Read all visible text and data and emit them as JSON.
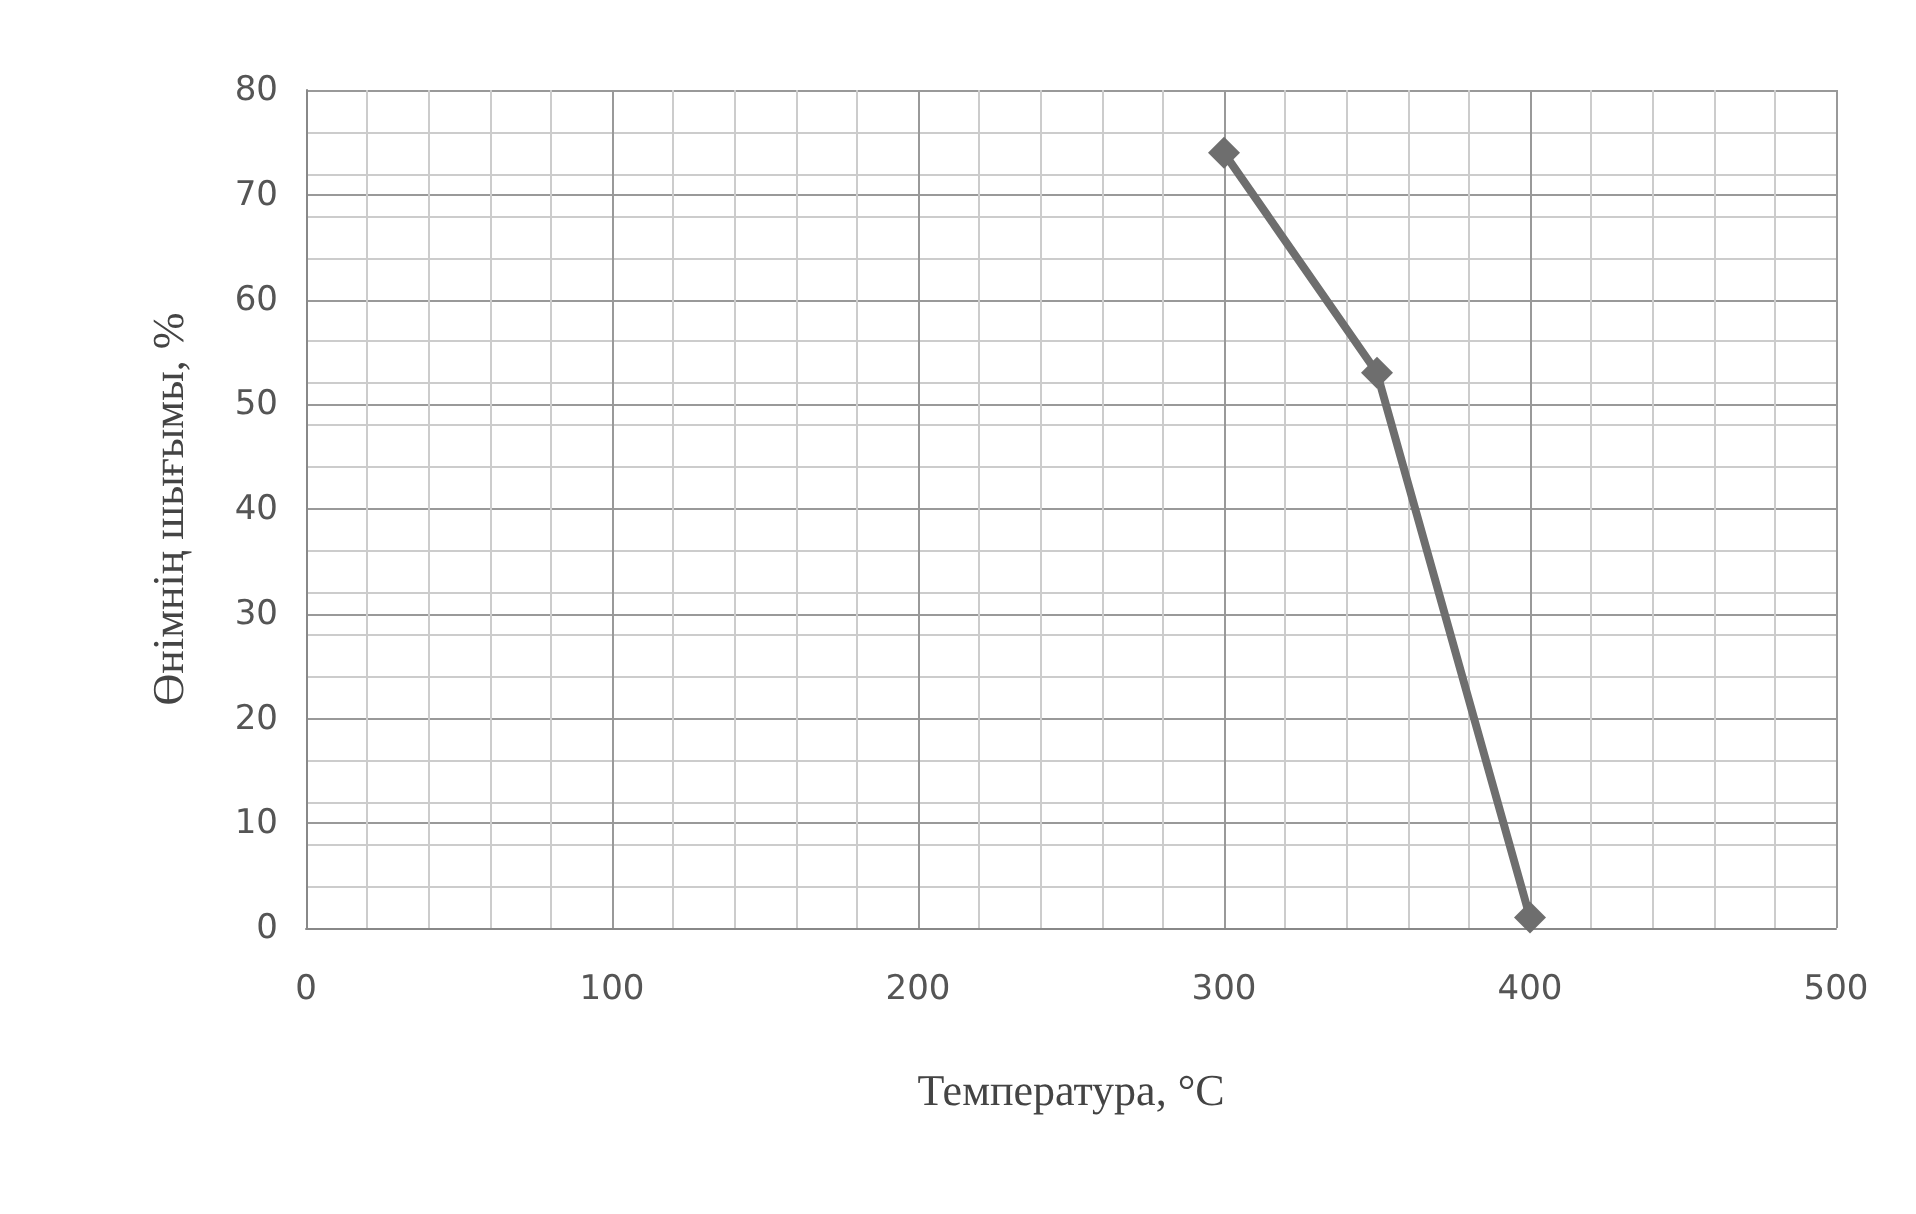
{
  "chart_data": {
    "type": "line",
    "xlabel": "Температура, °C",
    "ylabel": "Өнімнің шығымы, %",
    "x": [
      300,
      350,
      400
    ],
    "series": [
      {
        "color": "#6e6e6e",
        "values": [
          74,
          53,
          1
        ]
      }
    ],
    "xlim": [
      0,
      500
    ],
    "xticks": [
      0,
      100,
      200,
      300,
      400,
      500
    ],
    "ylim": [
      0,
      80
    ],
    "yticks": [
      0,
      10,
      20,
      30,
      40,
      50,
      60,
      70,
      80
    ],
    "grid": true,
    "marker": "diamond",
    "line_style": "solid"
  }
}
